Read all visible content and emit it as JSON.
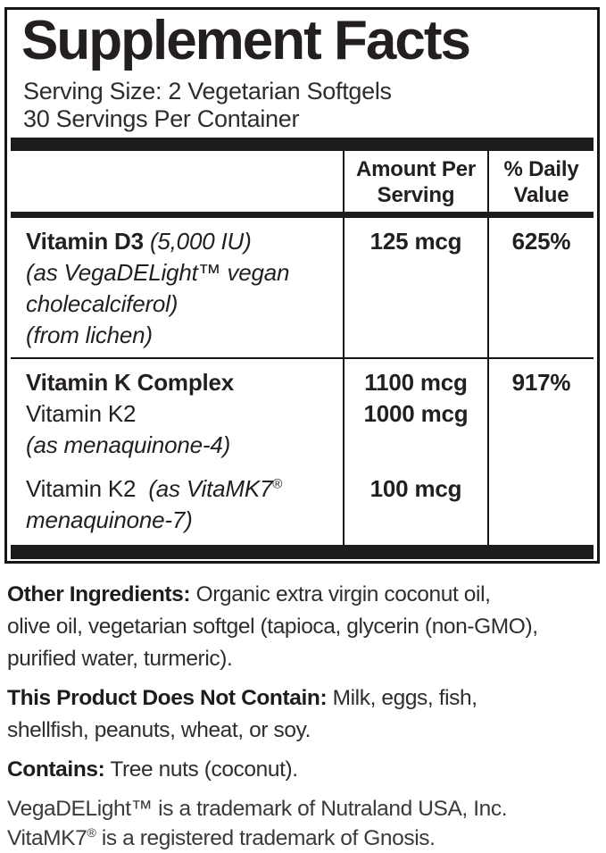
{
  "colors": {
    "text_dark": "#231f20",
    "text_body": "#2e2e2e",
    "border_black": "#161616"
  },
  "header": {
    "title": "Supplement Facts",
    "serving_size": "Serving Size: 2 Vegetarian Softgels",
    "servings_per_container": "30 Servings Per Container"
  },
  "table": {
    "col_amount_header": "Amount Per Serving",
    "col_dv_header": "% Daily Value",
    "vitamin_d3": {
      "name_bold": "Vitamin D3",
      "name_italic": "(5,000 IU)",
      "desc_line1_pre": "(as VegaDELight",
      "desc_line1_mark": "™",
      "desc_line1_post": " vegan",
      "desc_line2": "cholecalciferol)",
      "desc_line3": "(from lichen)",
      "amount": "125 mcg",
      "daily_value": "625%"
    },
    "vitamin_k": {
      "name_bold": "Vitamin K Complex",
      "amount": "1100 mcg",
      "daily_value": "917%",
      "k2_mk4_name": "Vitamin K2",
      "k2_mk4_amount": "1000 mcg",
      "k2_mk4_desc": "(as menaquinone-4)",
      "k2_mk7_name": "Vitamin K2",
      "k2_mk7_desc_pre": "(as VitaMK7",
      "k2_mk7_mark": "®",
      "k2_mk7_desc_line2": "menaquinone-7)",
      "k2_mk7_amount": "100 mcg"
    }
  },
  "footer": {
    "other_ingredients_label": "Other Ingredients:",
    "other_ingredients_line1": " Organic extra virgin coconut oil,",
    "other_ingredients_line2": "olive oil, vegetarian softgel (tapioca, glycerin (non-GMO),",
    "other_ingredients_line3": "purified water, turmeric).",
    "not_contain_label": "This Product Does Not Contain:",
    "not_contain_line1": " Milk, eggs, fish,",
    "not_contain_line2": "shellfish, peanuts, wheat, or soy.",
    "contains_label": "Contains:",
    "contains_text": " Tree nuts (coconut).",
    "trademark1_pre": "VegaDELight",
    "trademark1_mark": "™",
    "trademark1_post": " is a trademark of Nutraland USA, Inc.",
    "trademark2_pre": "VitaMK7",
    "trademark2_mark": "®",
    "trademark2_post": " is a registered trademark of Gnosis."
  }
}
